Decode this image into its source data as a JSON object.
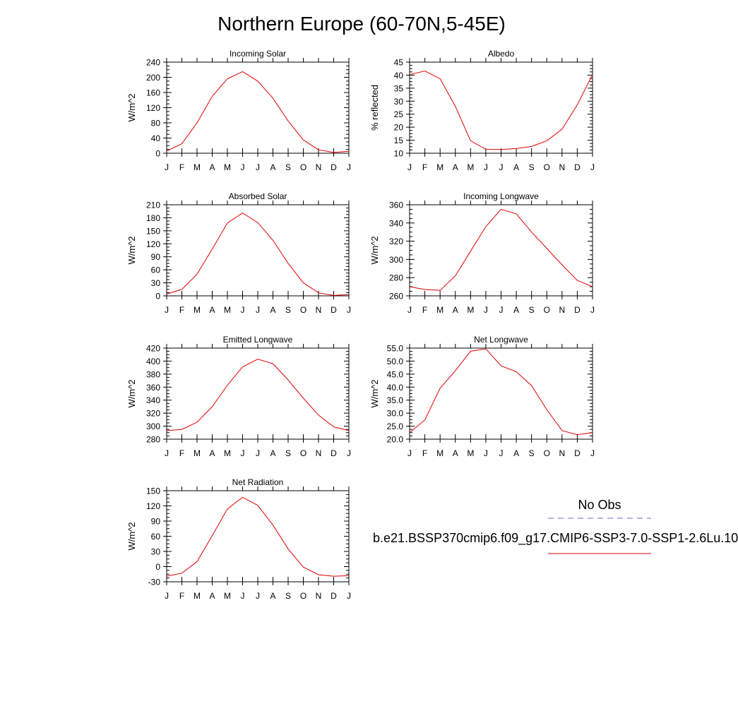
{
  "figure": {
    "title": "Northern Europe (60-70N,5-45E)"
  },
  "legend": {
    "obs_label": "No Obs",
    "obs_color": "#6666dd",
    "case_label": "b.e21.BSSP370cmip6.f09_g17.CMIP6-SSP3-7.0-SSP1-2.6Lu.10",
    "case_color": "#e00000"
  },
  "chart_data": [
    {
      "type": "line",
      "title": "Incoming Solar",
      "ylabel": "W/m^2",
      "ylim": [
        0,
        240
      ],
      "yticks": [
        0,
        40,
        80,
        120,
        160,
        200,
        240
      ],
      "ytick_labels": [
        "0",
        "40",
        "80",
        "120",
        "160",
        "200",
        "240"
      ],
      "categories": [
        "J",
        "F",
        "M",
        "A",
        "M",
        "J",
        "J",
        "A",
        "S",
        "O",
        "N",
        "D",
        "J"
      ],
      "series": [
        {
          "color": "#e00000",
          "values": [
            6,
            25,
            80,
            150,
            196,
            215,
            190,
            145,
            85,
            35,
            9,
            2,
            5
          ]
        }
      ]
    },
    {
      "type": "line",
      "title": "Albedo",
      "ylabel": "% reflected",
      "ylim": [
        10,
        45
      ],
      "yticks": [
        10,
        15,
        20,
        25,
        30,
        35,
        40,
        45
      ],
      "ytick_labels": [
        "10",
        "15",
        "20",
        "25",
        "30",
        "35",
        "40",
        "45"
      ],
      "categories": [
        "J",
        "F",
        "M",
        "A",
        "M",
        "J",
        "J",
        "A",
        "S",
        "O",
        "N",
        "D",
        "J"
      ],
      "series": [
        {
          "color": "#e00000",
          "values": [
            40.2,
            41.6,
            38.6,
            28.0,
            14.8,
            11.5,
            11.4,
            11.8,
            12.6,
            14.8,
            19.2,
            28.6,
            40.2
          ]
        }
      ]
    },
    {
      "type": "line",
      "title": "Absorbed Solar",
      "ylabel": "W/m^2",
      "ylim": [
        0,
        210
      ],
      "yticks": [
        0,
        30,
        60,
        90,
        120,
        150,
        180,
        210
      ],
      "ytick_labels": [
        "0",
        "30",
        "60",
        "90",
        "120",
        "150",
        "180",
        "210"
      ],
      "categories": [
        "J",
        "F",
        "M",
        "A",
        "M",
        "J",
        "J",
        "A",
        "S",
        "O",
        "N",
        "D",
        "J"
      ],
      "series": [
        {
          "color": "#e00000",
          "values": [
            4,
            15,
            50,
            108,
            168,
            191,
            169,
            128,
            75,
            30,
            7,
            1,
            3
          ]
        }
      ]
    },
    {
      "type": "line",
      "title": "Incoming Longwave",
      "ylabel": "W/m^2",
      "ylim": [
        260,
        360
      ],
      "yticks": [
        260,
        280,
        300,
        320,
        340,
        360
      ],
      "ytick_labels": [
        "260",
        "280",
        "300",
        "320",
        "340",
        "360"
      ],
      "categories": [
        "J",
        "F",
        "M",
        "A",
        "M",
        "J",
        "J",
        "A",
        "S",
        "O",
        "N",
        "D",
        "J"
      ],
      "series": [
        {
          "color": "#e00000",
          "values": [
            270,
            267,
            266,
            282,
            309,
            336,
            355,
            350,
            330,
            312,
            294,
            277,
            270
          ]
        }
      ]
    },
    {
      "type": "line",
      "title": "Emitted Longwave",
      "ylabel": "W/m^2",
      "ylim": [
        280,
        420
      ],
      "yticks": [
        280,
        300,
        320,
        340,
        360,
        380,
        400,
        420
      ],
      "ytick_labels": [
        "280",
        "300",
        "320",
        "340",
        "360",
        "380",
        "400",
        "420"
      ],
      "categories": [
        "J",
        "F",
        "M",
        "A",
        "M",
        "J",
        "J",
        "A",
        "S",
        "O",
        "N",
        "D",
        "J"
      ],
      "series": [
        {
          "color": "#e00000",
          "values": [
            293,
            295,
            306,
            330,
            363,
            391,
            403,
            396,
            371,
            343,
            317,
            299,
            293
          ]
        }
      ]
    },
    {
      "type": "line",
      "title": "Net Longwave",
      "ylabel": "W/m^2",
      "ylim": [
        20,
        55
      ],
      "yticks": [
        20,
        25,
        30,
        35,
        40,
        45,
        50,
        55
      ],
      "ytick_labels": [
        "20.0",
        "25.0",
        "30.0",
        "35.0",
        "40.0",
        "45.0",
        "50.0",
        "55.0"
      ],
      "categories": [
        "J",
        "F",
        "M",
        "A",
        "M",
        "J",
        "J",
        "A",
        "S",
        "O",
        "N",
        "D",
        "J"
      ],
      "series": [
        {
          "color": "#e00000",
          "values": [
            22.5,
            27.4,
            39.6,
            46.3,
            53.8,
            54.7,
            48.2,
            45.9,
            40.6,
            31.3,
            23.3,
            21.7,
            22.5
          ]
        }
      ]
    },
    {
      "type": "line",
      "title": "Net Radiation",
      "ylabel": "W/m^2",
      "ylim": [
        -30,
        150
      ],
      "yticks": [
        -30,
        0,
        30,
        60,
        90,
        120,
        150
      ],
      "ytick_labels": [
        "-30",
        "0",
        "30",
        "60",
        "90",
        "120",
        "150"
      ],
      "categories": [
        "J",
        "F",
        "M",
        "A",
        "M",
        "J",
        "J",
        "A",
        "S",
        "O",
        "N",
        "D",
        "J"
      ],
      "series": [
        {
          "color": "#e00000",
          "values": [
            -19,
            -13,
            10,
            61,
            114,
            137,
            121,
            82,
            35,
            -1,
            -16,
            -19,
            -18
          ]
        }
      ]
    }
  ]
}
